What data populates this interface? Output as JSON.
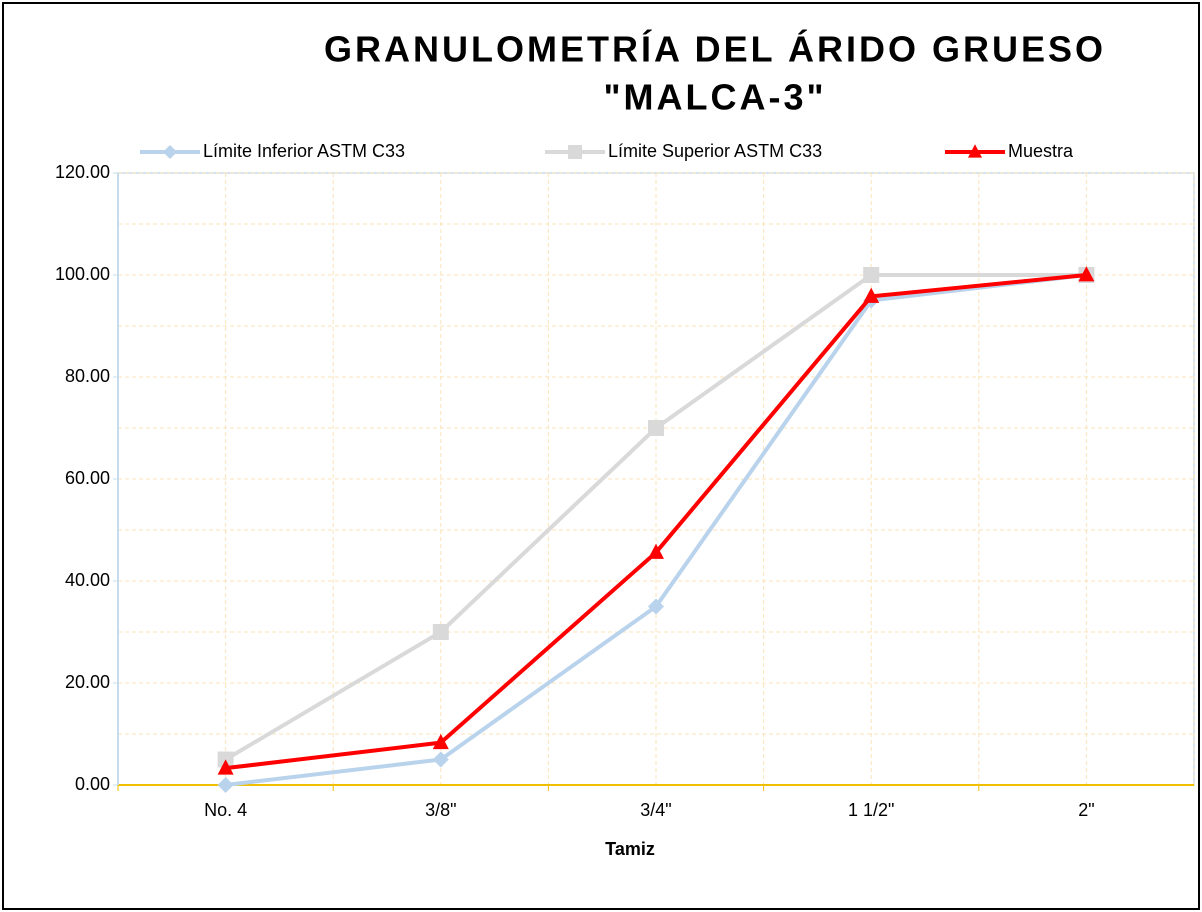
{
  "chart_data": {
    "type": "line",
    "title": [
      "GRANULOMETRÍA DEL ÁRIDO GRUESO",
      "\"MALCA-3\""
    ],
    "x_label": "Tamiz",
    "categories": [
      "No. 4",
      "3/8\"",
      "3/4\"",
      "1 1/2\"",
      "2\""
    ],
    "series": [
      {
        "name": "Límite Inferior ASTM C33",
        "color": "#b9d3ec",
        "marker": "diamond",
        "values": [
          0,
          5,
          35,
          95,
          100
        ]
      },
      {
        "name": "Límite Superior ASTM C33",
        "color": "#d9d9d9",
        "marker": "square",
        "values": [
          5,
          30,
          70,
          100,
          100
        ]
      },
      {
        "name": "Muestra",
        "color": "#ff0000",
        "marker": "triangle",
        "values": [
          3.3,
          8.3,
          45.6,
          95.8,
          100
        ]
      }
    ],
    "ylim": [
      0,
      120
    ],
    "yticks": [
      {
        "value": 0,
        "label": "0.00"
      },
      {
        "value": 20,
        "label": "20.00"
      },
      {
        "value": 40,
        "label": "40.00"
      },
      {
        "value": 60,
        "label": "60.00"
      },
      {
        "value": 80,
        "label": "80.00"
      },
      {
        "value": 100,
        "label": "100.00"
      },
      {
        "value": 120,
        "label": "120.00"
      }
    ],
    "grid": true,
    "legend": "top"
  }
}
